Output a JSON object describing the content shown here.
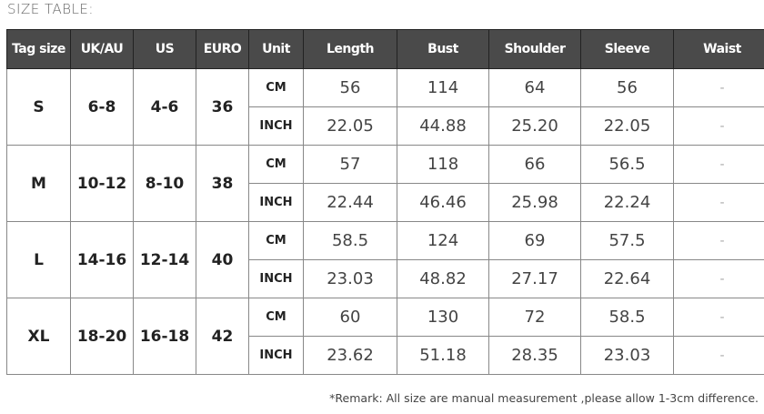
{
  "title": "SIZE TABLE:",
  "headers": [
    "Tag size",
    "UK/AU",
    "US",
    "EURO",
    "Unit",
    "Length",
    "Bust",
    "Shoulder",
    "Sleeve",
    "Waist"
  ],
  "units": [
    "CM",
    "INCH"
  ],
  "rows": [
    {
      "tag": "S",
      "uk": "6-8",
      "us": "4-6",
      "euro": "36",
      "cm": [
        "56",
        "114",
        "64",
        "56",
        "-"
      ],
      "inch": [
        "22.05",
        "44.88",
        "25.20",
        "22.05",
        "-"
      ]
    },
    {
      "tag": "M",
      "uk": "10-12",
      "us": "8-10",
      "euro": "38",
      "cm": [
        "57",
        "118",
        "66",
        "56.5",
        "-"
      ],
      "inch": [
        "22.44",
        "46.46",
        "25.98",
        "22.24",
        "-"
      ]
    },
    {
      "tag": "L",
      "uk": "14-16",
      "us": "12-14",
      "euro": "40",
      "cm": [
        "58.5",
        "124",
        "69",
        "57.5",
        "-"
      ],
      "inch": [
        "23.03",
        "48.82",
        "27.17",
        "22.64",
        "-"
      ]
    },
    {
      "tag": "XL",
      "uk": "18-20",
      "us": "16-18",
      "euro": "42",
      "cm": [
        "60",
        "130",
        "72",
        "58.5",
        "-"
      ],
      "inch": [
        "23.62",
        "51.18",
        "28.35",
        "23.03",
        "-"
      ]
    }
  ],
  "remark": "*Remark: All size are manual measurement ,please allow 1-3cm difference."
}
